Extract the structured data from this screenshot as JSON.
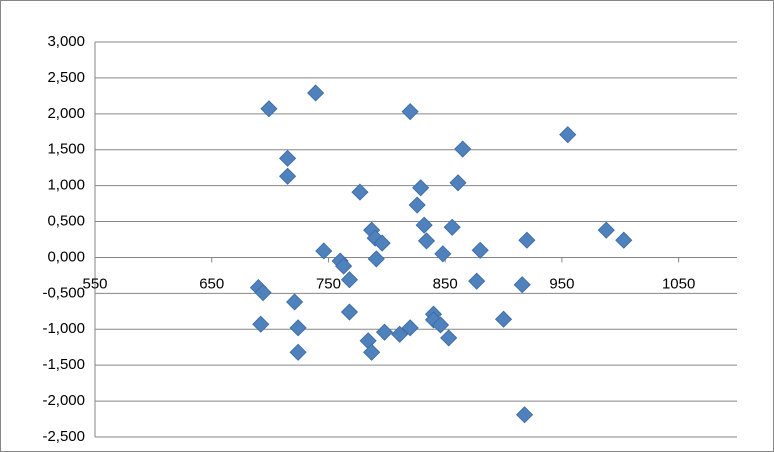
{
  "chart_data": {
    "type": "scatter",
    "x": [
      699,
      739,
      820,
      955,
      715,
      865,
      715,
      777,
      829,
      861,
      826,
      832,
      856,
      787,
      834,
      790,
      796,
      920,
      988,
      1003,
      746,
      880,
      848,
      760,
      791,
      763,
      768,
      877,
      690,
      694,
      916,
      721,
      768,
      840,
      840,
      846,
      900,
      692,
      724,
      820,
      798,
      811,
      853,
      784,
      787,
      724,
      918
    ],
    "series": [
      {
        "color": "#4f81bd",
        "values": [
          2.07,
          2.29,
          2.03,
          1.71,
          1.38,
          1.51,
          1.13,
          0.91,
          0.97,
          1.04,
          0.73,
          0.45,
          0.42,
          0.38,
          0.23,
          0.27,
          0.2,
          0.24,
          0.38,
          0.24,
          0.09,
          0.1,
          0.05,
          -0.05,
          -0.02,
          -0.12,
          -0.31,
          -0.33,
          -0.42,
          -0.49,
          -0.38,
          -0.62,
          -0.76,
          -0.79,
          -0.87,
          -0.94,
          -0.86,
          -0.93,
          -0.98,
          -0.98,
          -1.04,
          -1.07,
          -1.12,
          -1.16,
          -1.32,
          -1.32,
          -2.19
        ]
      }
    ],
    "xlim": [
      550,
      1100
    ],
    "xticks": [
      550,
      650,
      750,
      850,
      950,
      1050
    ],
    "ylim": [
      -2.5,
      3
    ],
    "yticks": [
      {
        "value": -2.5,
        "label": "-2,500"
      },
      {
        "value": -2,
        "label": "-2,000"
      },
      {
        "value": -1.5,
        "label": "-1,500"
      },
      {
        "value": -1,
        "label": "-1,000"
      },
      {
        "value": -0.5,
        "label": "-0,500"
      },
      {
        "value": 0,
        "label": "0,000"
      },
      {
        "value": 0.5,
        "label": "0,500"
      },
      {
        "value": 1,
        "label": "1,000"
      },
      {
        "value": 1.5,
        "label": "1,500"
      },
      {
        "value": 2,
        "label": "2,000"
      },
      {
        "value": 2.5,
        "label": "2,500"
      },
      {
        "value": 3,
        "label": "3,000"
      }
    ],
    "grid": true
  }
}
